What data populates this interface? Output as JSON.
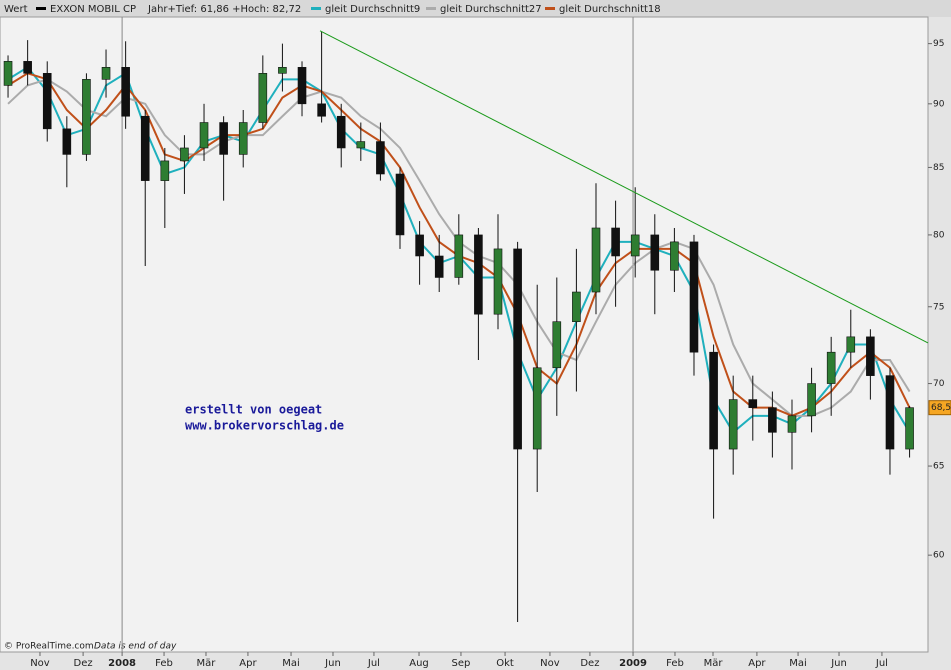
{
  "chart_data": {
    "type": "candlestick",
    "legend_title": "Wert",
    "info": "Jahr+Tief: 61,86 +Hoch: 82,72",
    "log_scale": true,
    "grid": false,
    "up_color": "#2e7d32",
    "down_color": "#111111",
    "ylim": [
      55,
      97.3
    ],
    "yticks": [
      60,
      65,
      70,
      75,
      80,
      85,
      90,
      95
    ],
    "xlim": [
      -0.41,
      46.94
    ],
    "xticks": [
      {
        "value": 1.63,
        "label": "Nov"
      },
      {
        "value": 3.83,
        "label": "Dez"
      },
      {
        "value": 5.82,
        "label": "2008"
      },
      {
        "value": 7.96,
        "label": "Feb"
      },
      {
        "value": 10.1,
        "label": "Mär"
      },
      {
        "value": 12.24,
        "label": "Apr"
      },
      {
        "value": 14.44,
        "label": "Mai"
      },
      {
        "value": 16.58,
        "label": "Jun"
      },
      {
        "value": 18.67,
        "label": "Jul"
      },
      {
        "value": 20.97,
        "label": "Aug"
      },
      {
        "value": 23.11,
        "label": "Sep"
      },
      {
        "value": 25.36,
        "label": "Okt"
      },
      {
        "value": 27.65,
        "label": "Nov"
      },
      {
        "value": 29.69,
        "label": "Dez"
      },
      {
        "value": 31.89,
        "label": "2009"
      },
      {
        "value": 34.03,
        "label": "Feb"
      },
      {
        "value": 35.97,
        "label": "Mär"
      },
      {
        "value": 38.21,
        "label": "Apr"
      },
      {
        "value": 40.31,
        "label": "Mai"
      },
      {
        "value": 42.4,
        "label": "Jun"
      },
      {
        "value": 44.59,
        "label": "Jul"
      }
    ],
    "series": [
      {
        "name": "EXXON MOBIL CP",
        "color": "#000000",
        "open": [
          91.5,
          93.5,
          92.5,
          88.0,
          86.0,
          92.0,
          93.0,
          89.0,
          84.0,
          85.5,
          86.5,
          88.5,
          86.0,
          88.5,
          92.5,
          93.0,
          90.0,
          89.0,
          86.5,
          87.0,
          84.5,
          80.0,
          78.5,
          77.0,
          80.0,
          74.5,
          79.0,
          66.0,
          71.0,
          74.0,
          76.0,
          80.5,
          78.5,
          80.0,
          77.5,
          79.5,
          72.0,
          66.0,
          69.0,
          68.5,
          67.0,
          68.0,
          70.0,
          72.0,
          73.0,
          70.5,
          66.0
        ],
        "high": [
          94.0,
          95.3,
          93.5,
          89.0,
          92.5,
          94.5,
          95.2,
          89.5,
          86.5,
          87.5,
          90.0,
          89.0,
          89.5,
          94.0,
          95.0,
          93.5,
          96.0,
          90.0,
          88.5,
          88.5,
          85.0,
          81.0,
          80.0,
          81.5,
          80.5,
          81.5,
          79.5,
          76.5,
          77.0,
          79.0,
          83.8,
          82.5,
          83.5,
          81.5,
          80.5,
          80.0,
          72.5,
          70.5,
          70.5,
          69.5,
          69.0,
          71.0,
          73.0,
          74.8,
          73.5,
          71.0,
          68.6
        ],
        "low": [
          90.5,
          91.5,
          87.0,
          83.5,
          85.5,
          90.5,
          88.0,
          77.8,
          80.5,
          83.0,
          85.5,
          82.5,
          85.0,
          88.0,
          91.0,
          89.0,
          88.5,
          85.0,
          85.5,
          84.0,
          79.0,
          76.5,
          76.0,
          76.5,
          71.5,
          73.5,
          56.5,
          63.5,
          68.0,
          69.5,
          74.5,
          75.0,
          77.0,
          74.5,
          76.0,
          70.5,
          62.0,
          64.5,
          66.5,
          65.5,
          64.8,
          67.0,
          68.0,
          71.0,
          69.0,
          64.5,
          65.5
        ],
        "close": [
          93.5,
          92.5,
          88.0,
          86.0,
          92.0,
          93.0,
          89.0,
          84.0,
          85.5,
          86.5,
          88.5,
          86.0,
          88.5,
          92.5,
          93.0,
          90.0,
          89.0,
          86.5,
          87.0,
          84.5,
          80.0,
          78.5,
          77.0,
          80.0,
          74.5,
          79.0,
          66.0,
          71.0,
          74.0,
          76.0,
          80.5,
          78.5,
          80.0,
          77.5,
          79.5,
          72.0,
          66.0,
          69.0,
          68.5,
          67.0,
          68.0,
          70.0,
          72.0,
          73.0,
          70.5,
          66.0,
          68.5
        ]
      },
      {
        "name": "gleit Durchschnitt9",
        "color": "#1fb0bd",
        "values": [
          92,
          93,
          91,
          87.5,
          88,
          91.5,
          92.5,
          88,
          84.5,
          85,
          87,
          87.5,
          87,
          89.5,
          92,
          92,
          91,
          88,
          86.5,
          86,
          83,
          79.5,
          78,
          78.5,
          77,
          77,
          72,
          69,
          71,
          74,
          77,
          79.5,
          79.5,
          79,
          78.5,
          76,
          69,
          67,
          68,
          68,
          67.5,
          68.5,
          70,
          72.5,
          72.5,
          69,
          67
        ]
      },
      {
        "name": "gleit Durchschnitt27",
        "color": "#ababab",
        "values": [
          90,
          91.5,
          92,
          91,
          89.5,
          89,
          90.5,
          90,
          87.5,
          86,
          86,
          87,
          87.5,
          87.5,
          89,
          90.5,
          91,
          90.5,
          89,
          88,
          86.5,
          84,
          81.5,
          79.5,
          78.5,
          78,
          76.5,
          74,
          72,
          71.5,
          74,
          76.5,
          78,
          79,
          79.5,
          79,
          76.5,
          72.5,
          70,
          69,
          68,
          68,
          68.5,
          69.5,
          71.5,
          71.5,
          69.5
        ]
      },
      {
        "name": "gleit Durchschnitt18",
        "color": "#c0501a",
        "values": [
          91.5,
          92.5,
          92,
          89.5,
          88,
          89.5,
          91.5,
          89.5,
          86,
          85.5,
          86.5,
          87.5,
          87.5,
          88,
          90.5,
          91.5,
          91,
          89.5,
          88,
          87,
          85,
          82,
          79.5,
          78.5,
          78,
          77,
          74.5,
          71,
          70,
          72.5,
          76,
          78,
          79,
          79,
          79,
          78,
          73,
          69.5,
          68.5,
          68.5,
          68,
          68.5,
          69.5,
          71,
          72,
          71,
          68.5
        ]
      }
    ],
    "trend_line": {
      "color": "#1a9a1a",
      "x": [
        15.92,
        46.94
      ],
      "y": [
        96.1,
        72.6
      ]
    },
    "last_price": {
      "value": 68.5,
      "label": "68,5",
      "color": "#f5a623"
    },
    "annotations": [
      "erstellt von oegeat",
      "www.brokervorschlag.de"
    ],
    "source": "© ProRealTime.com",
    "note": "Data is end of day"
  }
}
